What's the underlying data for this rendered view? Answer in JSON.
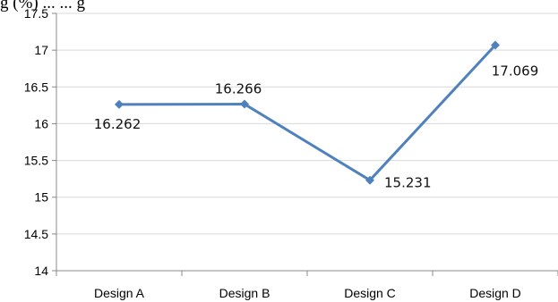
{
  "caption_fragment": "g (%) ... ... g",
  "chart_data": {
    "type": "line",
    "categories": [
      "Design A",
      "Design B",
      "Design C",
      "Design D"
    ],
    "series": [
      {
        "values": [
          16.262,
          16.266,
          15.231,
          17.069
        ]
      }
    ],
    "data_labels": [
      "16.262",
      "16.266",
      "15.231",
      "17.069"
    ],
    "yticks": [
      "14",
      "14.5",
      "15",
      "15.5",
      "16",
      "16.5",
      "17",
      "17.5"
    ],
    "ylim": [
      14,
      17.5
    ],
    "ystep": 0.5,
    "grid": true,
    "legend": "none",
    "title": "",
    "xlabel": "",
    "ylabel": ""
  },
  "colors": {
    "line": "#4F81BD",
    "grid": "#D9D9D9",
    "axis": "#888888"
  }
}
